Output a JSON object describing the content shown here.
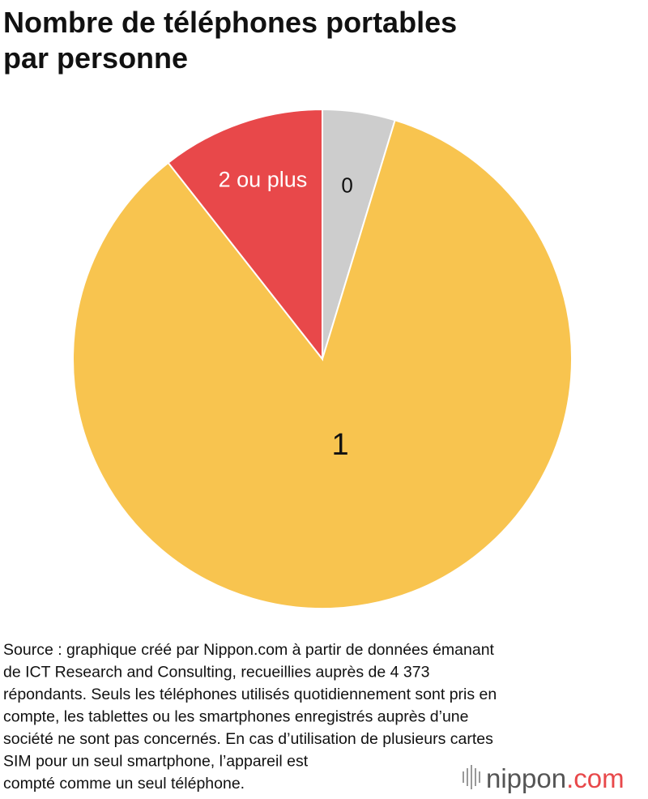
{
  "chart_data": {
    "type": "pie",
    "title": [
      "Nombre de téléphones portables",
      "par personne"
    ],
    "categories": [
      "0",
      "1",
      "2 ou plus"
    ],
    "values": [
      4.7,
      84.7,
      10.6
    ],
    "colors": [
      "#cdcdcd",
      "#f8c44f",
      "#e8484a"
    ],
    "label_colors": [
      "#111111",
      "#111111",
      "#ffffff"
    ],
    "start_angle": 0,
    "direction": "clockwise"
  },
  "source": [
    "Source : graphique créé par Nippon.com à partir de données émanant",
    "de ICT Research and Consulting, recueillies auprès de 4 373",
    "répondants. Seuls les téléphones utilisés quotidiennement sont pris en",
    "compte, les tablettes ou les smartphones enregistrés auprès d’une",
    "société ne sont pas concernés. En cas d’utilisation de plusieurs cartes",
    "SIM pour un seul smartphone, l’appareil est",
    "compté comme un seul téléphone."
  ],
  "logo": {
    "name": "nippon",
    "suffix": ".com"
  }
}
